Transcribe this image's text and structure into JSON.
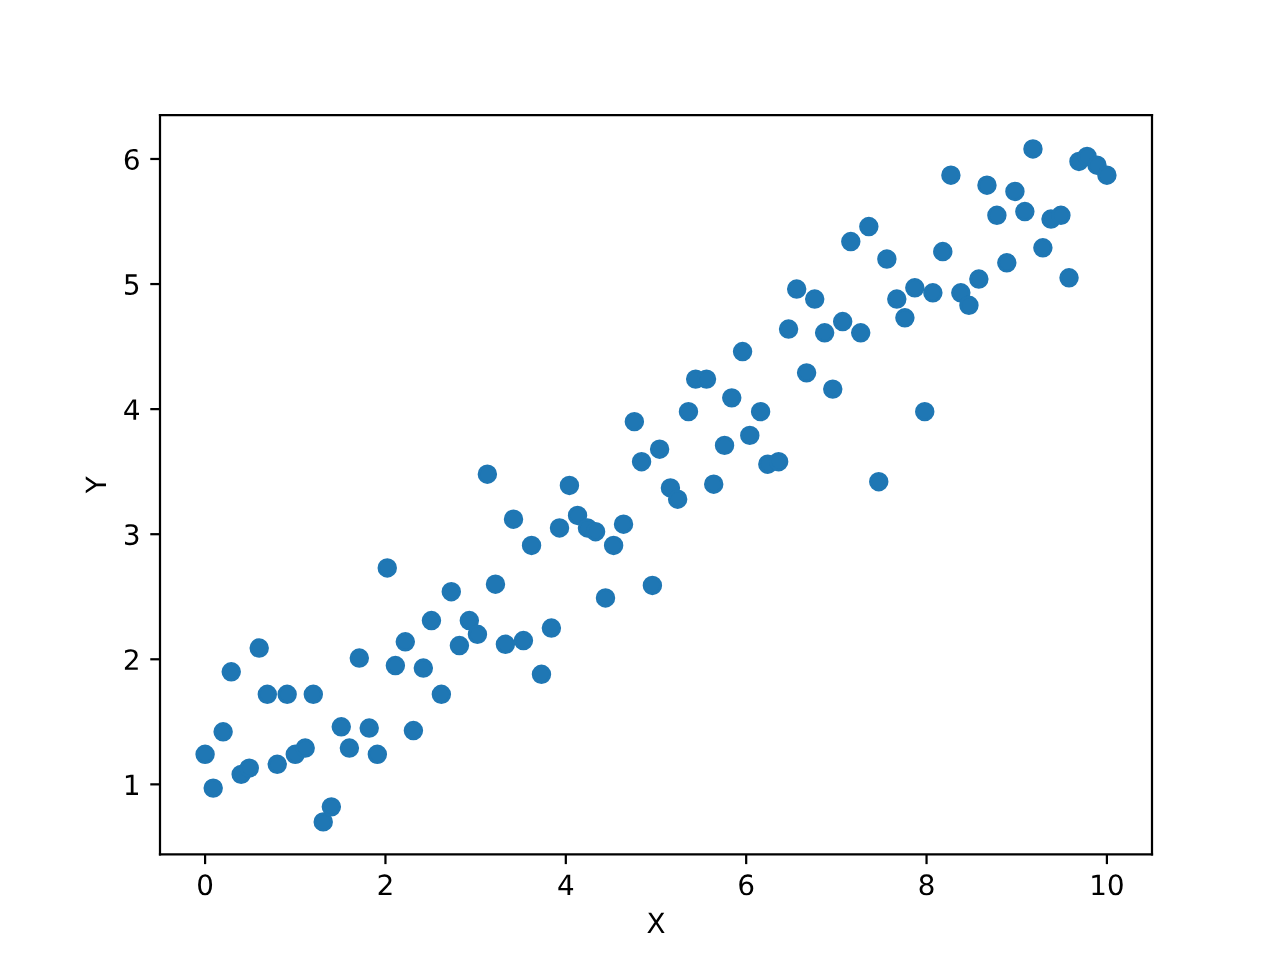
{
  "chart_data": {
    "type": "scatter",
    "xlabel": "X",
    "ylabel": "Y",
    "x": [
      0,
      0.09,
      0.2,
      0.29,
      0.4,
      0.49,
      0.6,
      0.69,
      0.8,
      0.91,
      1.0,
      1.11,
      1.2,
      1.31,
      1.4,
      1.51,
      1.6,
      1.71,
      1.82,
      1.91,
      2.02,
      2.11,
      2.22,
      2.31,
      2.42,
      2.51,
      2.62,
      2.73,
      2.82,
      2.93,
      3.02,
      3.13,
      3.22,
      3.33,
      3.42,
      3.53,
      3.62,
      3.73,
      3.84,
      3.93,
      4.04,
      4.13,
      4.24,
      4.33,
      4.44,
      4.53,
      4.64,
      4.76,
      4.84,
      4.96,
      5.04,
      5.16,
      5.24,
      5.36,
      5.44,
      5.56,
      5.64,
      5.76,
      5.84,
      5.96,
      6.04,
      6.16,
      6.24,
      6.36,
      6.47,
      6.56,
      6.67,
      6.76,
      6.87,
      6.96,
      7.07,
      7.16,
      7.27,
      7.36,
      7.47,
      7.56,
      7.67,
      7.76,
      7.87,
      7.98,
      8.07,
      8.18,
      8.27,
      8.38,
      8.47,
      8.58,
      8.67,
      8.78,
      8.89,
      8.98,
      9.09,
      9.18,
      9.29,
      9.38,
      9.49,
      9.58,
      9.69,
      9.78,
      9.89,
      10
    ],
    "series": [
      {
        "color": "#1f77b4",
        "values": [
          1.24,
          0.97,
          1.42,
          1.9,
          1.08,
          1.13,
          2.09,
          1.72,
          1.16,
          1.72,
          1.24,
          1.29,
          1.72,
          0.7,
          0.82,
          1.46,
          1.29,
          2.01,
          1.45,
          1.24,
          2.73,
          1.95,
          2.14,
          1.43,
          1.93,
          2.31,
          1.72,
          2.54,
          2.11,
          2.31,
          2.2,
          3.48,
          2.6,
          2.12,
          3.12,
          2.15,
          2.91,
          1.88,
          2.25,
          3.05,
          3.39,
          3.15,
          3.05,
          3.02,
          2.49,
          2.91,
          3.08,
          3.9,
          3.58,
          2.59,
          3.68,
          3.37,
          3.28,
          3.98,
          4.24,
          4.24,
          3.4,
          3.71,
          4.09,
          4.46,
          3.79,
          3.98,
          3.56,
          3.58,
          4.64,
          4.96,
          4.29,
          4.88,
          4.61,
          4.16,
          4.7,
          5.34,
          4.61,
          5.46,
          3.42,
          5.2,
          4.88,
          4.73,
          4.97,
          3.98,
          4.93,
          5.26,
          5.87,
          4.93,
          4.83,
          5.04,
          5.79,
          5.55,
          5.17,
          5.74,
          5.58,
          6.08,
          5.29,
          5.52,
          5.55,
          5.05,
          5.98,
          6.02,
          5.95,
          5.87
        ]
      }
    ],
    "xlim": [
      -0.5,
      10.5
    ],
    "xticks": [
      0,
      2,
      4,
      6,
      8,
      10
    ],
    "ylim": [
      0.44,
      6.35
    ],
    "yticks": [
      1,
      2,
      3,
      4,
      5,
      6
    ],
    "marker": "circle",
    "grid": false,
    "legend": false
  }
}
